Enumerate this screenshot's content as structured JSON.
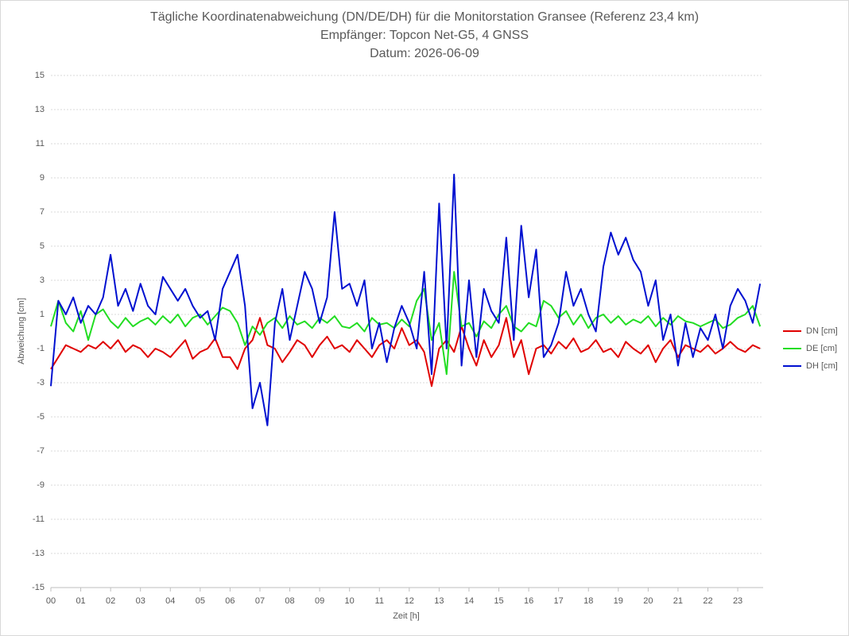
{
  "chart_data": {
    "type": "line",
    "title": [
      "Tägliche Koordinatenabweichung (DN/DE/DH) für die Monitorstation Gransee (Referenz 23,4 km)",
      "Empfänger: Topcon Net-G5, 4 GNSS",
      "Datum: 2026-06-09"
    ],
    "x_label": "Zeit [h]",
    "y_label": "Abweichung [cm]",
    "x": [
      0,
      0.25,
      0.5,
      0.75,
      1,
      1.25,
      1.5,
      1.75,
      2,
      2.25,
      2.5,
      2.75,
      3,
      3.25,
      3.5,
      3.75,
      4,
      4.25,
      4.5,
      4.75,
      5,
      5.25,
      5.5,
      5.75,
      6,
      6.25,
      6.5,
      6.75,
      7,
      7.25,
      7.5,
      7.75,
      8,
      8.25,
      8.5,
      8.75,
      9,
      9.25,
      9.5,
      9.75,
      10,
      10.25,
      10.5,
      10.75,
      11,
      11.25,
      11.5,
      11.75,
      12,
      12.25,
      12.5,
      12.75,
      13,
      13.25,
      13.5,
      13.75,
      14,
      14.25,
      14.5,
      14.75,
      15,
      15.25,
      15.5,
      15.75,
      16,
      16.25,
      16.5,
      16.75,
      17,
      17.25,
      17.5,
      17.75,
      18,
      18.25,
      18.5,
      18.75,
      19,
      19.25,
      19.5,
      19.75,
      20,
      20.25,
      20.5,
      20.75,
      21,
      21.25,
      21.5,
      21.75,
      22,
      22.25,
      22.5,
      22.75,
      23,
      23.25,
      23.5,
      23.75
    ],
    "series": [
      {
        "name": "DN [cm]",
        "color": "#e00000",
        "values": [
          -2.2,
          -1.5,
          -0.8,
          -1.0,
          -1.2,
          -0.8,
          -1.0,
          -0.6,
          -1.0,
          -0.5,
          -1.2,
          -0.8,
          -1.0,
          -1.5,
          -1.0,
          -1.2,
          -1.5,
          -1.0,
          -0.5,
          -1.6,
          -1.2,
          -1.0,
          -0.4,
          -1.5,
          -1.5,
          -2.2,
          -1.0,
          -0.5,
          0.8,
          -0.8,
          -1.0,
          -1.8,
          -1.2,
          -0.5,
          -0.8,
          -1.5,
          -0.8,
          -0.3,
          -1.0,
          -0.8,
          -1.2,
          -0.5,
          -1.0,
          -1.5,
          -0.8,
          -0.5,
          -1.0,
          0.2,
          -0.8,
          -0.5,
          -1.2,
          -3.2,
          -1.0,
          -0.5,
          -1.2,
          0.3,
          -1.0,
          -2.0,
          -0.5,
          -1.5,
          -0.8,
          0.8,
          -1.5,
          -0.5,
          -2.5,
          -1.0,
          -0.8,
          -1.3,
          -0.6,
          -1.0,
          -0.4,
          -1.2,
          -1.0,
          -0.5,
          -1.2,
          -1.0,
          -1.5,
          -0.6,
          -1.0,
          -1.3,
          -0.8,
          -1.8,
          -1.0,
          -0.5,
          -1.5,
          -0.8,
          -1.0,
          -1.2,
          -0.8,
          -1.3,
          -1.0,
          -0.6,
          -1.0,
          -1.2,
          -0.8,
          -1.0
        ]
      },
      {
        "name": "DE [cm]",
        "color": "#22dd22",
        "values": [
          0.3,
          1.8,
          0.5,
          0.0,
          1.2,
          -0.5,
          1.0,
          1.3,
          0.6,
          0.2,
          0.8,
          0.3,
          0.6,
          0.8,
          0.4,
          0.9,
          0.5,
          1.0,
          0.3,
          0.8,
          1.0,
          0.4,
          0.9,
          1.4,
          1.2,
          0.5,
          -0.8,
          0.3,
          -0.2,
          0.5,
          0.8,
          0.2,
          0.9,
          0.4,
          0.6,
          0.2,
          0.8,
          0.5,
          0.9,
          0.3,
          0.2,
          0.5,
          0.0,
          0.8,
          0.4,
          0.5,
          0.2,
          0.7,
          0.3,
          1.8,
          2.5,
          -0.5,
          0.5,
          -2.5,
          3.5,
          0.3,
          0.5,
          -0.3,
          0.6,
          0.2,
          1.0,
          1.5,
          0.3,
          0.0,
          0.5,
          0.3,
          1.8,
          1.5,
          0.8,
          1.2,
          0.4,
          1.0,
          0.2,
          0.8,
          1.0,
          0.5,
          0.9,
          0.4,
          0.7,
          0.5,
          0.9,
          0.3,
          0.8,
          0.4,
          0.9,
          0.6,
          0.5,
          0.3,
          0.5,
          0.7,
          0.2,
          0.4,
          0.8,
          1.0,
          1.5,
          0.3
        ]
      },
      {
        "name": "DH [cm]",
        "color": "#0010d0",
        "values": [
          -3.2,
          1.8,
          1.0,
          2.0,
          0.5,
          1.5,
          1.0,
          2.0,
          4.5,
          1.5,
          2.5,
          1.2,
          2.8,
          1.5,
          1.0,
          3.2,
          2.5,
          1.8,
          2.5,
          1.5,
          0.8,
          1.2,
          -0.5,
          2.5,
          3.5,
          4.5,
          1.5,
          -4.5,
          -3.0,
          -5.5,
          0.5,
          2.5,
          -0.5,
          1.5,
          3.5,
          2.5,
          0.5,
          2.0,
          7.0,
          2.5,
          2.8,
          1.5,
          3.0,
          -1.0,
          0.5,
          -1.8,
          0.2,
          1.5,
          0.5,
          -1.0,
          3.5,
          -2.5,
          7.5,
          -1.0,
          9.2,
          -2.0,
          3.0,
          -1.5,
          2.5,
          1.2,
          0.5,
          5.5,
          -0.5,
          6.2,
          2.0,
          4.8,
          -1.5,
          -0.8,
          0.5,
          3.5,
          1.5,
          2.5,
          1.0,
          0.0,
          3.8,
          5.8,
          4.5,
          5.5,
          4.2,
          3.5,
          1.5,
          3.0,
          -0.5,
          1.0,
          -2.0,
          0.5,
          -1.5,
          0.2,
          -0.5,
          1.0,
          -1.0,
          1.5,
          2.5,
          1.8,
          0.5,
          2.8
        ]
      }
    ],
    "xlim": [
      0,
      23.85
    ],
    "xticks": [
      {
        "value": 0,
        "label": "00"
      },
      {
        "value": 1,
        "label": "01"
      },
      {
        "value": 2,
        "label": "02"
      },
      {
        "value": 3,
        "label": "03"
      },
      {
        "value": 4,
        "label": "04"
      },
      {
        "value": 5,
        "label": "05"
      },
      {
        "value": 6,
        "label": "06"
      },
      {
        "value": 7,
        "label": "07"
      },
      {
        "value": 8,
        "label": "08"
      },
      {
        "value": 9,
        "label": "09"
      },
      10,
      11,
      12,
      13,
      14,
      15,
      16,
      17,
      18,
      19,
      20,
      21,
      22,
      23
    ],
    "ylim": [
      -15,
      15
    ],
    "yticks": [
      -15,
      -13,
      -11,
      -9,
      -7,
      -5,
      -3,
      -1,
      1,
      3,
      5,
      7,
      9,
      11,
      13,
      15
    ],
    "grid": true,
    "legend": "right"
  }
}
